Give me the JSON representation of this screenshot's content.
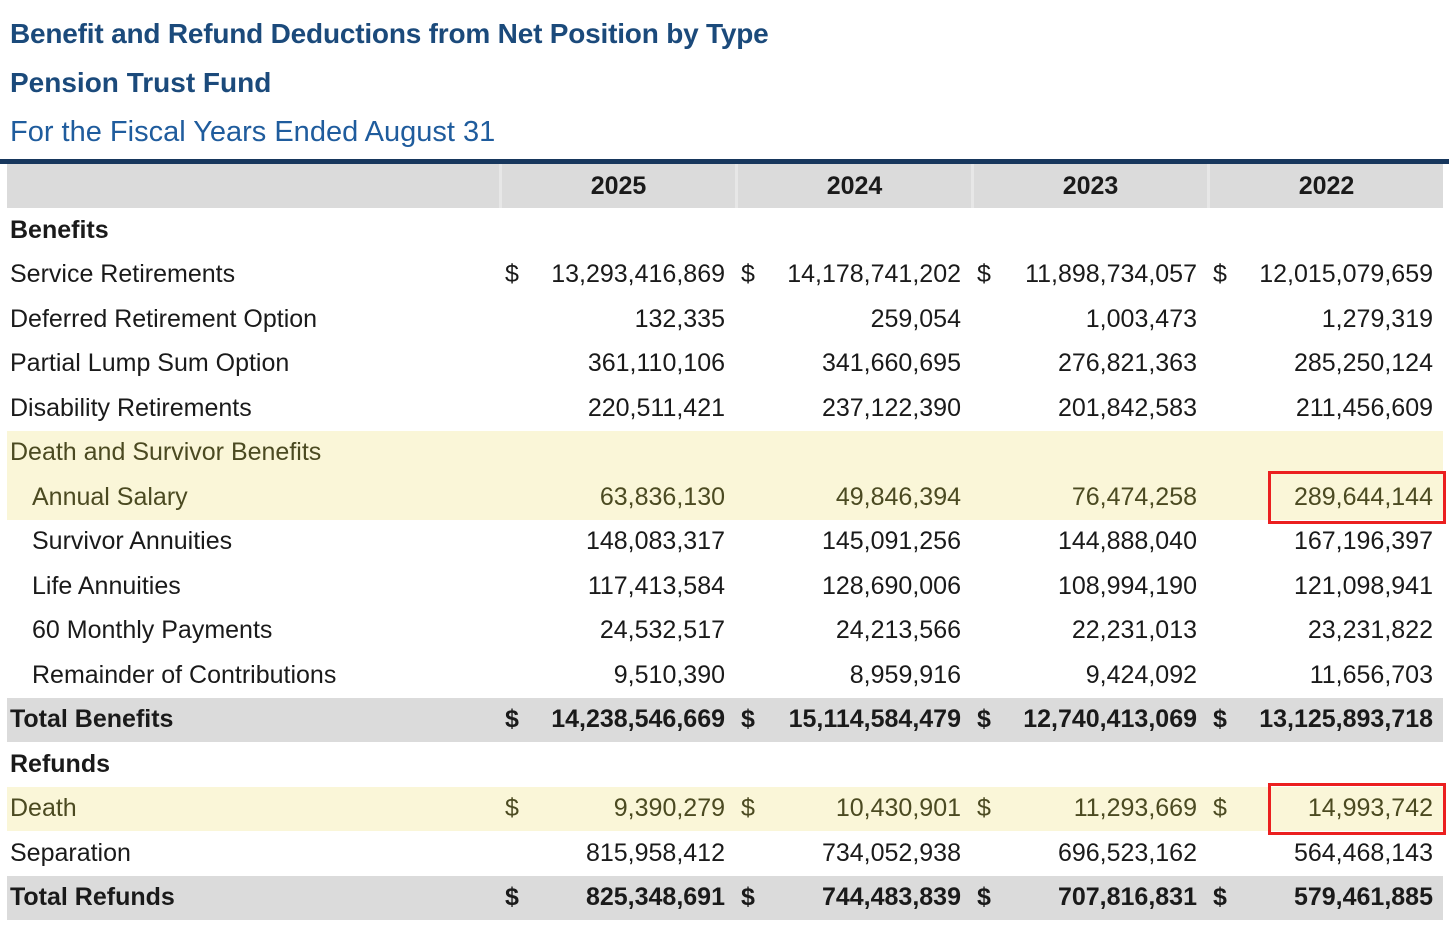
{
  "page": {
    "title_line1": "Benefit and Refund Deductions from Net Position by Type",
    "title_line2": "Pension Trust Fund",
    "title_line3": "For the Fiscal Years Ended August 31"
  },
  "table": {
    "years": [
      "2025",
      "2024",
      "2023",
      "2022"
    ],
    "rows": [
      {
        "label": "Benefits",
        "type": "section"
      },
      {
        "label": "Service Retirements",
        "type": "data",
        "dollar": true,
        "values": [
          "13,293,416,869",
          "14,178,741,202",
          "11,898,734,057",
          "12,015,079,659"
        ]
      },
      {
        "label": "Deferred Retirement Option",
        "type": "data",
        "values": [
          "132,335",
          "259,054",
          "1,003,473",
          "1,279,319"
        ]
      },
      {
        "label": "Partial Lump Sum Option",
        "type": "data",
        "values": [
          "361,110,106",
          "341,660,695",
          "276,821,363",
          "285,250,124"
        ]
      },
      {
        "label": "Disability Retirements",
        "type": "data",
        "values": [
          "220,511,421",
          "237,122,390",
          "201,842,583",
          "211,456,609"
        ]
      },
      {
        "label": "Death and Survivor Benefits",
        "type": "subsection",
        "highlight": "yellow",
        "olive_text": true
      },
      {
        "label": "Annual Salary",
        "type": "data",
        "indent": true,
        "highlight": "yellow",
        "olive_text": true,
        "values": [
          "63,836,130",
          "49,846,394",
          "76,474,258",
          "289,644,144"
        ],
        "red_box_col": 3
      },
      {
        "label": "Survivor Annuities",
        "type": "data",
        "indent": true,
        "values": [
          "148,083,317",
          "145,091,256",
          "144,888,040",
          "167,196,397"
        ]
      },
      {
        "label": "Life Annuities",
        "type": "data",
        "indent": true,
        "values": [
          "117,413,584",
          "128,690,006",
          "108,994,190",
          "121,098,941"
        ]
      },
      {
        "label": "60 Monthly Payments",
        "type": "data",
        "indent": true,
        "values": [
          "24,532,517",
          "24,213,566",
          "22,231,013",
          "23,231,822"
        ]
      },
      {
        "label": "Remainder of Contributions",
        "type": "data",
        "indent": true,
        "values": [
          "9,510,390",
          "8,959,916",
          "9,424,092",
          "11,656,703"
        ]
      },
      {
        "label": "Total Benefits",
        "type": "total",
        "dollar": true,
        "highlight": "gray",
        "values": [
          "14,238,546,669",
          "15,114,584,479",
          "12,740,413,069",
          "13,125,893,718"
        ]
      },
      {
        "label": "Refunds",
        "type": "section"
      },
      {
        "label": "Death",
        "type": "data",
        "dollar": true,
        "highlight": "yellow",
        "olive_text": true,
        "values": [
          "9,390,279",
          "10,430,901",
          "11,293,669",
          "14,993,742"
        ],
        "red_box_col": 3
      },
      {
        "label": "Separation",
        "type": "data",
        "values": [
          "815,958,412",
          "734,052,938",
          "696,523,162",
          "564,468,143"
        ]
      },
      {
        "label": "Total Refunds",
        "type": "total",
        "dollar": true,
        "highlight": "gray",
        "values": [
          "825,348,691",
          "744,483,839",
          "707,816,831",
          "579,461,885"
        ]
      }
    ],
    "currency_symbol": "$"
  },
  "colors": {
    "title_blue": "#1B4A7B",
    "subtitle_blue": "#1F5C9D",
    "rule_navy": "#17375D",
    "band_gray": "#DBDBDB",
    "band_yellow": "#FAF6D8",
    "olive_text": "#4B4A21",
    "annotation_red": "#EB1F1F"
  }
}
